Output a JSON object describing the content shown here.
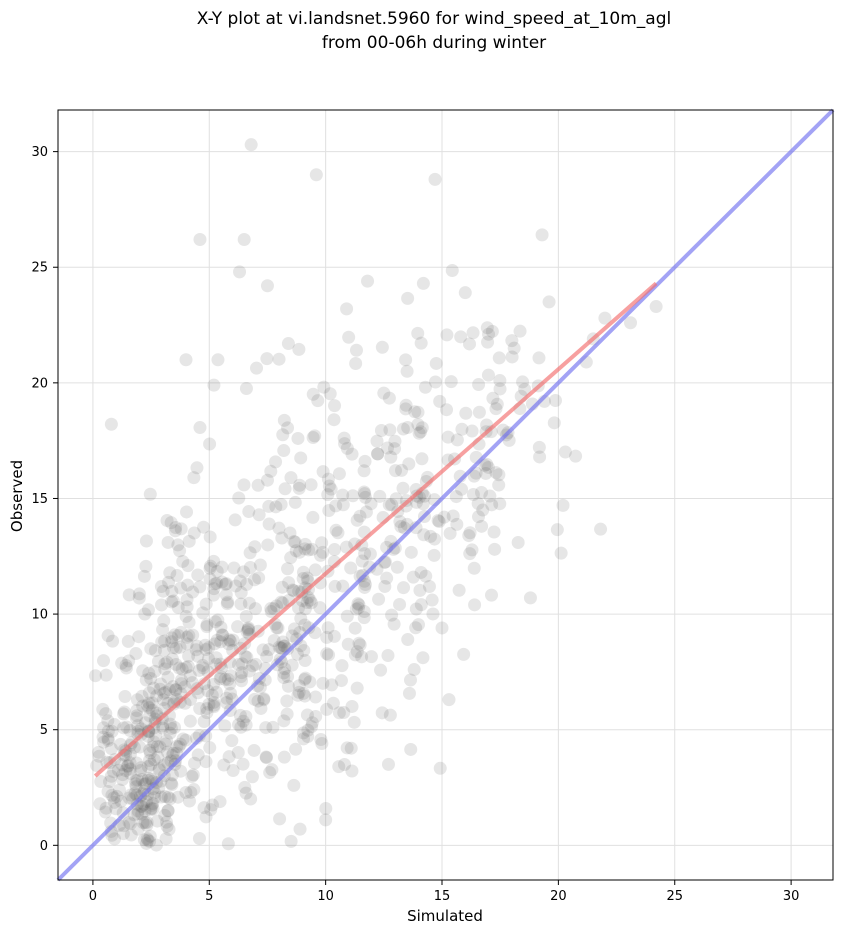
{
  "chart_data": {
    "type": "scatter",
    "title_line1": "X-Y plot at vi.landsnet.5960 for wind_speed_at_10m_agl",
    "title_line2": "from 00-06h during winter",
    "xlabel": "Simulated",
    "ylabel": "Observed",
    "xlim": [
      -1.5,
      31.8
    ],
    "ylim": [
      -1.5,
      31.8
    ],
    "xticks": [
      0,
      5,
      10,
      15,
      20,
      25,
      30
    ],
    "yticks": [
      0,
      5,
      10,
      15,
      20,
      25,
      30
    ],
    "grid": true,
    "colors": {
      "points": "#555555",
      "fit_line": "#f26d6d",
      "identity_line": "#7272f0",
      "grid": "#e0e0e0"
    },
    "fit_line": {
      "x": [
        0.1,
        24.2
      ],
      "y": [
        3.0,
        24.3
      ]
    },
    "identity_line": {
      "x": [
        -1.5,
        31.8
      ],
      "y": [
        -1.5,
        31.8
      ]
    },
    "outlier_points": {
      "x": [
        6.8,
        9.6,
        14.7,
        4.6,
        6.5,
        6.3,
        19.3,
        7.5,
        11.8,
        14.2,
        16.0,
        21.5,
        23.1,
        24.2,
        22.0,
        17.0,
        19.6,
        20.2,
        15.3,
        12.7,
        11.1,
        10.0,
        8.9,
        4.0,
        5.2,
        13.5,
        19.4,
        21.2,
        18.1,
        16.4,
        15.0,
        14.1,
        10.9,
        8.4,
        18.8
      ],
      "y": [
        30.3,
        29.0,
        28.8,
        26.2,
        26.2,
        24.8,
        26.4,
        24.2,
        24.4,
        24.3,
        23.9,
        21.9,
        22.6,
        23.3,
        22.8,
        22.1,
        23.5,
        14.7,
        6.3,
        3.5,
        4.2,
        1.1,
        0.7,
        21.0,
        19.9,
        20.5,
        19.2,
        20.9,
        21.5,
        10.4,
        9.4,
        11.8,
        23.2,
        21.7,
        10.7
      ]
    },
    "bulk_clusters": [
      {
        "cx": 2.0,
        "cy": 2.8,
        "sx": 1.0,
        "sy": 1.6,
        "n": 150
      },
      {
        "cx": 3.5,
        "cy": 7.0,
        "sx": 1.4,
        "sy": 2.8,
        "n": 180
      },
      {
        "cx": 6.5,
        "cy": 8.5,
        "sx": 2.2,
        "sy": 3.2,
        "n": 200
      },
      {
        "cx": 9.0,
        "cy": 10.5,
        "sx": 2.4,
        "sy": 3.5,
        "n": 150
      },
      {
        "cx": 12.0,
        "cy": 14.0,
        "sx": 2.4,
        "sy": 3.6,
        "n": 120
      },
      {
        "cx": 15.0,
        "cy": 17.0,
        "sx": 2.2,
        "sy": 3.2,
        "n": 90
      },
      {
        "cx": 18.0,
        "cy": 19.0,
        "sx": 1.8,
        "sy": 2.6,
        "n": 30
      }
    ]
  }
}
